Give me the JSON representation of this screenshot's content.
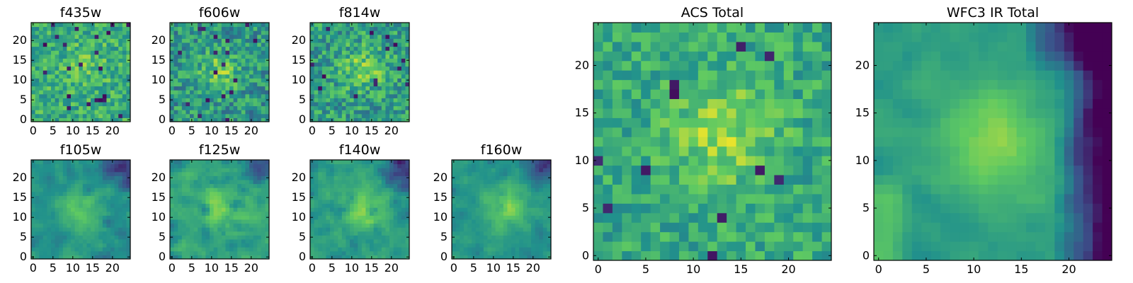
{
  "colormap": {
    "name": "viridis",
    "stops": [
      "#440154",
      "#3b528b",
      "#21918c",
      "#5ec962",
      "#fde725"
    ]
  },
  "chart_data": [
    {
      "id": "f435w",
      "type": "heatmap",
      "title": "f435w",
      "grid": [
        25,
        25
      ],
      "xticks": [
        0,
        5,
        10,
        15,
        20
      ],
      "yticks": [
        0,
        5,
        10,
        15,
        20
      ],
      "xlim": [
        0,
        25
      ],
      "ylim": [
        0,
        25
      ],
      "peak": [
        14,
        14
      ],
      "peak_strength": 0.1,
      "base_level": 0.62,
      "noise": 0.36,
      "dark_pixels": 0.035,
      "dark_corner": "none",
      "smooth": 0
    },
    {
      "id": "f606w",
      "type": "heatmap",
      "title": "f606w",
      "grid": [
        25,
        25
      ],
      "xticks": [
        0,
        5,
        10,
        15,
        20
      ],
      "yticks": [
        0,
        5,
        10,
        15,
        20
      ],
      "xlim": [
        0,
        25
      ],
      "ylim": [
        0,
        25
      ],
      "peak": [
        12,
        12
      ],
      "peak_strength": 0.25,
      "base_level": 0.52,
      "noise": 0.4,
      "dark_pixels": 0.035,
      "dark_corner": "none",
      "smooth": 0
    },
    {
      "id": "f814w",
      "type": "heatmap",
      "title": "f814w",
      "grid": [
        25,
        25
      ],
      "xticks": [
        0,
        5,
        10,
        15,
        20
      ],
      "yticks": [
        0,
        5,
        10,
        15,
        20
      ],
      "xlim": [
        0,
        25
      ],
      "ylim": [
        0,
        25
      ],
      "peak": [
        13,
        13
      ],
      "peak_strength": 0.22,
      "base_level": 0.55,
      "noise": 0.4,
      "dark_pixels": 0.03,
      "dark_corner": "none",
      "smooth": 0
    },
    {
      "id": "f105w",
      "type": "heatmap",
      "title": "f105w",
      "grid": [
        25,
        25
      ],
      "xticks": [
        0,
        5,
        10,
        15,
        20
      ],
      "yticks": [
        0,
        5,
        10,
        15,
        20
      ],
      "xlim": [
        0,
        25
      ],
      "ylim": [
        0,
        25
      ],
      "peak": [
        12,
        12
      ],
      "peak_strength": 0.25,
      "base_level": 0.5,
      "noise": 0.34,
      "dark_pixels": 0.015,
      "dark_corner": "top-right",
      "smooth": 1
    },
    {
      "id": "f125w",
      "type": "heatmap",
      "title": "f125w",
      "grid": [
        25,
        25
      ],
      "xticks": [
        0,
        5,
        10,
        15,
        20
      ],
      "yticks": [
        0,
        5,
        10,
        15,
        20
      ],
      "xlim": [
        0,
        25
      ],
      "ylim": [
        0,
        25
      ],
      "peak": [
        12,
        12
      ],
      "peak_strength": 0.22,
      "base_level": 0.58,
      "noise": 0.38,
      "dark_pixels": 0.03,
      "dark_corner": "top-right",
      "smooth": 1
    },
    {
      "id": "f140w",
      "type": "heatmap",
      "title": "f140w",
      "grid": [
        25,
        25
      ],
      "xticks": [
        0,
        5,
        10,
        15,
        20
      ],
      "yticks": [
        0,
        5,
        10,
        15,
        20
      ],
      "xlim": [
        0,
        25
      ],
      "ylim": [
        0,
        25
      ],
      "peak": [
        13,
        12
      ],
      "peak_strength": 0.25,
      "base_level": 0.55,
      "noise": 0.38,
      "dark_pixels": 0.03,
      "dark_corner": "top-right",
      "smooth": 1
    },
    {
      "id": "f160w",
      "type": "heatmap",
      "title": "f160w",
      "grid": [
        25,
        25
      ],
      "xticks": [
        0,
        5,
        10,
        15,
        20
      ],
      "yticks": [
        0,
        5,
        10,
        15,
        20
      ],
      "xlim": [
        0,
        25
      ],
      "ylim": [
        0,
        25
      ],
      "peak": [
        13,
        12
      ],
      "peak_strength": 0.28,
      "base_level": 0.52,
      "noise": 0.32,
      "dark_pixels": 0.015,
      "dark_corner": "top-right",
      "smooth": 1
    },
    {
      "id": "acs_total",
      "type": "heatmap",
      "title": "ACS Total",
      "grid": [
        25,
        25
      ],
      "xticks": [
        0,
        5,
        10,
        15,
        20
      ],
      "yticks": [
        0,
        5,
        10,
        15,
        20
      ],
      "xlim": [
        0,
        25
      ],
      "ylim": [
        0,
        25
      ],
      "peak": [
        13,
        13
      ],
      "peak_strength": 0.25,
      "base_level": 0.6,
      "noise": 0.3,
      "dark_pixels": 0.02,
      "dark_corner": "none",
      "smooth": 0
    },
    {
      "id": "wfc3_ir_total",
      "type": "heatmap",
      "title": "WFC3 IR Total",
      "grid": [
        25,
        25
      ],
      "xticks": [
        0,
        5,
        10,
        15,
        20
      ],
      "yticks": [
        0,
        5,
        10,
        15,
        20
      ],
      "xlim": [
        0,
        25
      ],
      "ylim": [
        0,
        25
      ],
      "peak": [
        12,
        12
      ],
      "peak_strength": 0.28,
      "base_level": 0.55,
      "noise": 0.22,
      "dark_pixels": 0.0,
      "dark_corner": "right",
      "smooth": 1
    }
  ]
}
